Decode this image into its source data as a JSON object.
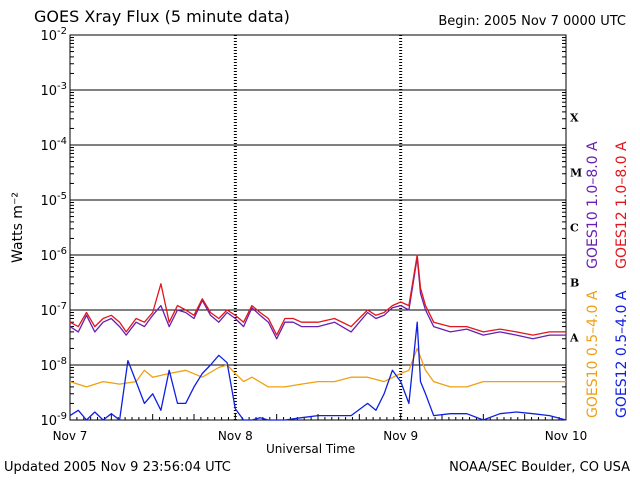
{
  "header": {
    "title": "GOES Xray Flux (5 minute data)",
    "begin": "Begin:  2005 Nov 7 0000 UTC"
  },
  "footer": {
    "updated": "Updated 2005 Nov  9 23:56:04 UTC",
    "source": "NOAA/SEC Boulder, CO USA"
  },
  "chart_data": {
    "type": "line",
    "title": "GOES Xray Flux (5 minute data)",
    "xlabel": "Universal Time",
    "ylabel": "Watts m⁻²",
    "yscale": "log",
    "ylim": [
      1e-09,
      0.01
    ],
    "xlim": [
      0,
      3
    ],
    "x_tick_labels": [
      "Nov 7",
      "Nov 8",
      "Nov 9",
      "Nov 10"
    ],
    "y_tick_labels": [
      {
        "base": "10",
        "exp": "-9"
      },
      {
        "base": "10",
        "exp": "-8"
      },
      {
        "base": "10",
        "exp": "-7"
      },
      {
        "base": "10",
        "exp": "-6"
      },
      {
        "base": "10",
        "exp": "-5"
      },
      {
        "base": "10",
        "exp": "-4"
      },
      {
        "base": "10",
        "exp": "-3"
      },
      {
        "base": "10",
        "exp": "-2"
      }
    ],
    "flare_classes": [
      {
        "label": "A",
        "exp": -8
      },
      {
        "label": "B",
        "exp": -7
      },
      {
        "label": "C",
        "exp": -6
      },
      {
        "label": "M",
        "exp": -5
      },
      {
        "label": "X",
        "exp": -4
      }
    ],
    "legend": [
      {
        "label": "GOES10 1.0–8.0 A",
        "color": "#6a1fb0"
      },
      {
        "label": "GOES12 1.0–8.0 A",
        "color": "#e0161b"
      },
      {
        "label": "GOES10 0.5–4.0 A",
        "color": "#f0a010"
      },
      {
        "label": "GOES12 0.5–4.0 A",
        "color": "#1020e0"
      }
    ],
    "series": [
      {
        "name": "GOES10 1.0–8.0 A",
        "color": "#6a1fb0",
        "x": [
          0,
          0.05,
          0.1,
          0.15,
          0.2,
          0.25,
          0.3,
          0.34,
          0.4,
          0.45,
          0.5,
          0.55,
          0.6,
          0.65,
          0.7,
          0.75,
          0.8,
          0.85,
          0.9,
          0.95,
          1.0,
          1.05,
          1.1,
          1.15,
          1.2,
          1.25,
          1.3,
          1.35,
          1.4,
          1.5,
          1.6,
          1.7,
          1.8,
          1.85,
          1.9,
          1.95,
          2.0,
          2.05,
          2.1,
          2.12,
          2.15,
          2.2,
          2.3,
          2.4,
          2.5,
          2.6,
          2.7,
          2.8,
          2.9,
          3.0
        ],
        "y": [
          5e-08,
          4e-08,
          8e-08,
          4e-08,
          6e-08,
          7e-08,
          5e-08,
          3.5e-08,
          6e-08,
          5e-08,
          8e-08,
          1.2e-07,
          5e-08,
          1e-07,
          9e-08,
          7e-08,
          1.5e-07,
          8e-08,
          6e-08,
          9e-08,
          7e-08,
          5e-08,
          1.1e-07,
          8e-08,
          6e-08,
          3e-08,
          6e-08,
          6e-08,
          5e-08,
          5e-08,
          6e-08,
          4e-08,
          9e-08,
          7e-08,
          8e-08,
          1.1e-07,
          1.2e-07,
          1e-07,
          9e-07,
          2e-07,
          1e-07,
          5e-08,
          4e-08,
          4.5e-08,
          3.5e-08,
          4e-08,
          3.5e-08,
          3e-08,
          3.5e-08,
          3.5e-08
        ]
      },
      {
        "name": "GOES12 1.0–8.0 A",
        "color": "#e0161b",
        "x": [
          0,
          0.05,
          0.1,
          0.15,
          0.2,
          0.25,
          0.3,
          0.34,
          0.4,
          0.45,
          0.5,
          0.55,
          0.6,
          0.65,
          0.7,
          0.75,
          0.8,
          0.85,
          0.9,
          0.95,
          1.0,
          1.05,
          1.1,
          1.15,
          1.2,
          1.25,
          1.3,
          1.35,
          1.4,
          1.5,
          1.6,
          1.7,
          1.8,
          1.85,
          1.9,
          1.95,
          2.0,
          2.05,
          2.1,
          2.12,
          2.15,
          2.2,
          2.3,
          2.4,
          2.5,
          2.6,
          2.7,
          2.8,
          2.9,
          3.0
        ],
        "y": [
          6e-08,
          5e-08,
          9e-08,
          5e-08,
          7e-08,
          8e-08,
          6e-08,
          4e-08,
          7e-08,
          6e-08,
          9e-08,
          3e-07,
          6e-08,
          1.2e-07,
          1e-07,
          8e-08,
          1.6e-07,
          9e-08,
          7e-08,
          1e-07,
          8e-08,
          6e-08,
          1.2e-07,
          9e-08,
          7e-08,
          3.5e-08,
          7e-08,
          7e-08,
          6e-08,
          6e-08,
          7e-08,
          5e-08,
          1e-07,
          8e-08,
          9e-08,
          1.2e-07,
          1.4e-07,
          1.2e-07,
          1e-06,
          2.5e-07,
          1.2e-07,
          6e-08,
          5e-08,
          5e-08,
          4e-08,
          4.5e-08,
          4e-08,
          3.5e-08,
          4e-08,
          4e-08
        ]
      },
      {
        "name": "GOES10 0.5–4.0 A",
        "color": "#f0a010",
        "x": [
          0,
          0.1,
          0.2,
          0.3,
          0.4,
          0.45,
          0.5,
          0.6,
          0.7,
          0.8,
          0.9,
          0.95,
          1.0,
          1.05,
          1.1,
          1.2,
          1.3,
          1.4,
          1.5,
          1.6,
          1.7,
          1.8,
          1.9,
          2.0,
          2.05,
          2.1,
          2.15,
          2.2,
          2.3,
          2.4,
          2.5,
          2.6,
          2.7,
          2.8,
          2.9,
          3.0
        ],
        "y": [
          5e-09,
          4e-09,
          5e-09,
          4.5e-09,
          5e-09,
          8e-09,
          6e-09,
          7e-09,
          8e-09,
          6e-09,
          9e-09,
          1e-08,
          7e-09,
          5e-09,
          6e-09,
          4e-09,
          4e-09,
          4.5e-09,
          5e-09,
          5e-09,
          6e-09,
          6e-09,
          5e-09,
          7e-09,
          8e-09,
          2e-08,
          8e-09,
          5e-09,
          4e-09,
          4e-09,
          5e-09,
          5e-09,
          5e-09,
          5e-09,
          5e-09,
          5e-09
        ]
      },
      {
        "name": "GOES12 0.5–4.0 A",
        "color": "#1020e0",
        "x": [
          0,
          0.05,
          0.1,
          0.15,
          0.2,
          0.25,
          0.3,
          0.35,
          0.4,
          0.45,
          0.5,
          0.55,
          0.6,
          0.65,
          0.7,
          0.75,
          0.8,
          0.85,
          0.9,
          0.95,
          1.0,
          1.05,
          1.1,
          1.15,
          1.2,
          1.3,
          1.4,
          1.5,
          1.6,
          1.7,
          1.8,
          1.85,
          1.9,
          1.95,
          2.0,
          2.05,
          2.1,
          2.12,
          2.15,
          2.2,
          2.3,
          2.4,
          2.5,
          2.6,
          2.7,
          2.8,
          2.9,
          3.0
        ],
        "y": [
          1.2e-09,
          1.5e-09,
          1e-09,
          1.4e-09,
          1e-09,
          1.3e-09,
          1e-09,
          1.2e-08,
          5e-09,
          2e-09,
          3e-09,
          1.5e-09,
          8e-09,
          2e-09,
          2e-09,
          4e-09,
          7e-09,
          1e-08,
          1.5e-08,
          1.1e-08,
          1.6e-09,
          1e-09,
          1e-09,
          1.1e-09,
          1e-09,
          1e-09,
          1.1e-09,
          1.2e-09,
          1.2e-09,
          1.2e-09,
          2e-09,
          1.5e-09,
          3e-09,
          8e-09,
          5e-09,
          2e-09,
          6e-08,
          5e-09,
          3e-09,
          1.2e-09,
          1.3e-09,
          1.3e-09,
          1e-09,
          1.3e-09,
          1.4e-09,
          1.3e-09,
          1.2e-09,
          1e-09
        ]
      }
    ],
    "grid": {
      "horizontal": true,
      "vertical_dashed_at_day_boundaries": true
    }
  }
}
